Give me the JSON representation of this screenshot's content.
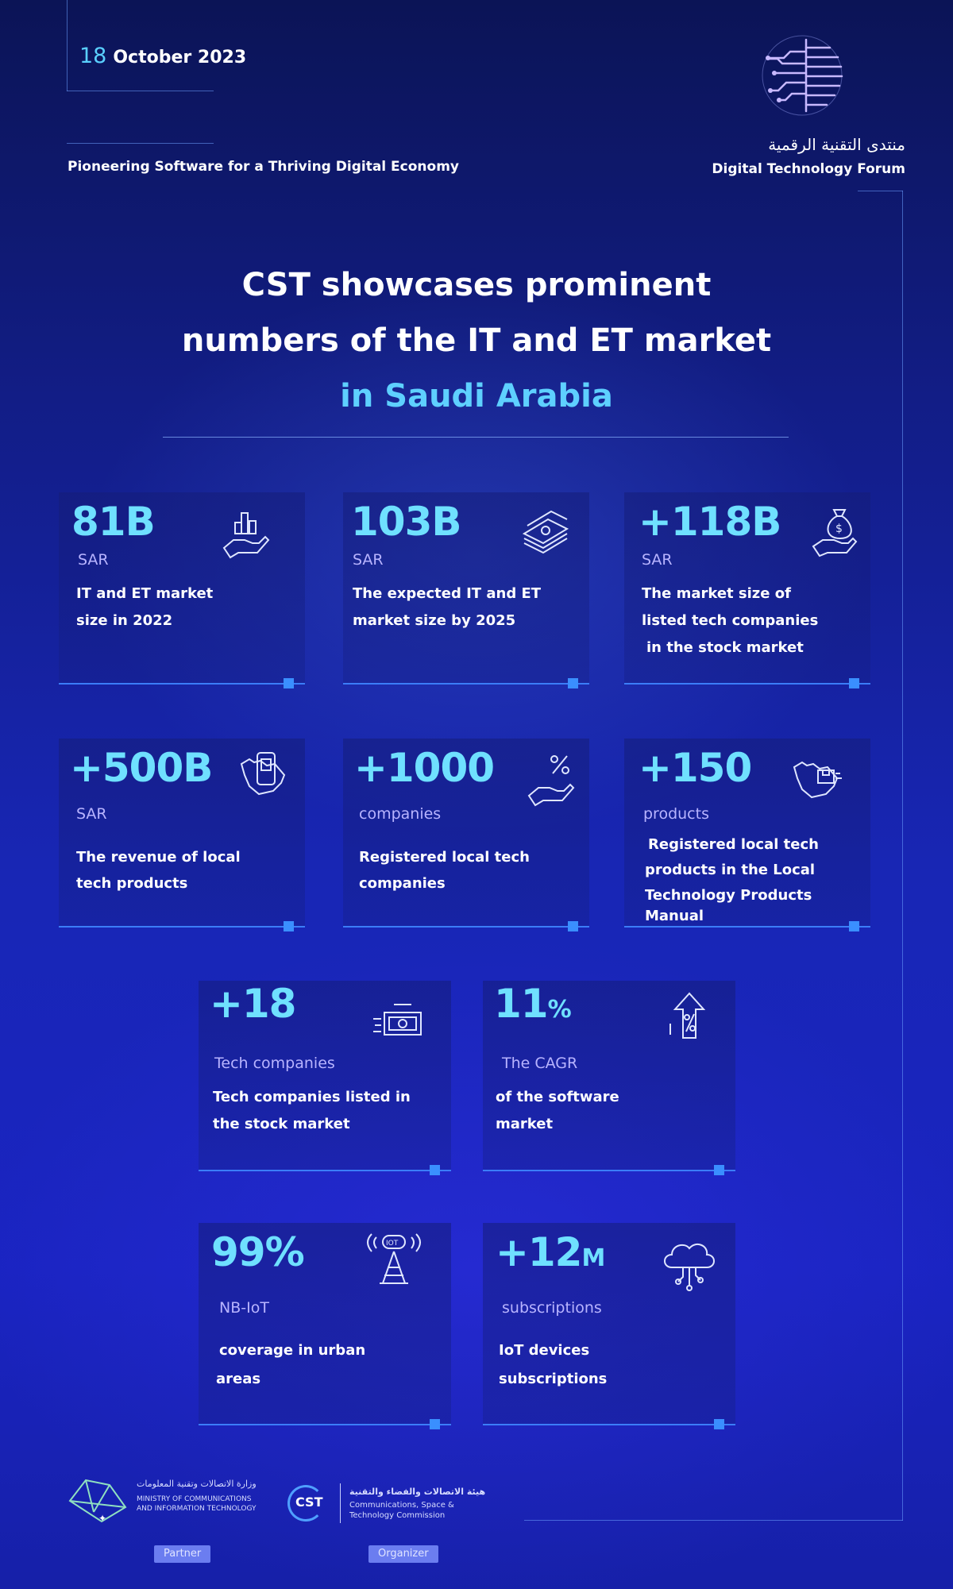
{
  "header": {
    "date_day": "18",
    "date_rest": "October 2023",
    "tagline": "Pioneering Software for a Thriving Digital Economy",
    "forum_name_ar": "منتدى التقنية الرقمية",
    "forum_name_en": "Digital Technology Forum"
  },
  "title": {
    "line1": "CST showcases prominent",
    "line2": "numbers of the IT and ET market",
    "line3": "in Saudi Arabia"
  },
  "stats": [
    {
      "value": "81B",
      "unit": "SAR",
      "desc1": "IT and ET market",
      "desc2": "size in 2022",
      "desc3": "",
      "desc4": "",
      "icon": "hand-bar-chart-icon"
    },
    {
      "value": "103B",
      "unit": "SAR",
      "desc1": "The expected IT and ET",
      "desc2": "market size by 2025",
      "desc3": "",
      "desc4": "",
      "icon": "money-stack-icon"
    },
    {
      "value": "+118B",
      "unit": "SAR",
      "desc1": "The market size of",
      "desc2": "listed tech companies",
      "desc3": "in the stock market",
      "desc4": "",
      "icon": "money-bag-hand-icon"
    },
    {
      "value": "+500B",
      "unit": "SAR",
      "desc1": "The revenue of local",
      "desc2": "tech products",
      "desc3": "",
      "desc4": "",
      "icon": "map-phone-icon"
    },
    {
      "value": "+1000",
      "unit": "companies",
      "desc1": "Registered local tech",
      "desc2": "companies",
      "desc3": "",
      "desc4": "",
      "icon": "hand-percent-icon"
    },
    {
      "value": "+150",
      "unit": "products",
      "desc1": "Registered local tech",
      "desc2": "products in the Local",
      "desc3": "Technology Products",
      "desc4": "Manual",
      "icon": "map-product-icon"
    },
    {
      "value": "+18",
      "unit": "Tech companies",
      "desc1": "Tech companies listed in",
      "desc2": "the stock market",
      "desc3": "",
      "desc4": "",
      "icon": "cash-icon"
    },
    {
      "value": "11",
      "value_suffix": "%",
      "unit": "The CAGR",
      "desc1": "of the software",
      "desc2": "market",
      "desc3": "",
      "desc4": "",
      "icon": "arrow-up-percent-icon"
    },
    {
      "value": "99%",
      "unit": "NB-IoT",
      "desc1": "coverage in urban",
      "desc2": "areas",
      "desc3": "",
      "desc4": "",
      "icon": "iot-tower-icon"
    },
    {
      "value": "+12",
      "value_suffix": "M",
      "unit": "subscriptions",
      "desc1": "IoT devices",
      "desc2": "subscriptions",
      "desc3": "",
      "desc4": "",
      "icon": "cloud-tree-icon"
    }
  ],
  "footer": {
    "ministry_ar": "وزارة الاتصالات وتقنية المعلومات",
    "ministry_en1": "MINISTRY OF COMMUNICATIONS",
    "ministry_en2": "AND INFORMATION TECHNOLOGY",
    "partner_label": "Partner",
    "cst_logo_text": "CST",
    "cst_ar": "هيئة الاتصالات والفضاء والتقنية",
    "cst_en1": "Communications, Space &",
    "cst_en2": "Technology Commission",
    "organizer_label": "Organizer"
  },
  "colors": {
    "accent_cyan": "#6fe0ff",
    "unit_lavender": "#b8b4ff",
    "card_rule": "#3b7df8",
    "background": "#1826b5"
  }
}
